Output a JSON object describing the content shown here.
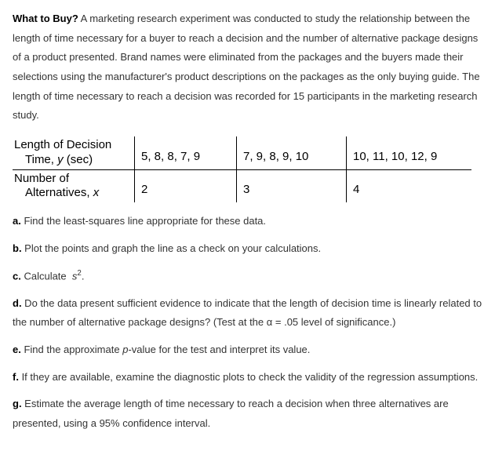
{
  "intro": {
    "lead": "What to Buy?",
    "body": " A marketing research experiment was conducted to study the relationship between the length of time necessary for a buyer to reach a decision and the number of alternative package designs of a product presented. Brand names were eliminated from the packages and the buyers made their selections using the manufacturer's product descriptions on the packages as the only buying guide. The length of time necessary to reach a decision was recorded for 15 participants in the marketing research study."
  },
  "table": {
    "row1": {
      "label_line1": "Length of Decision",
      "label_line2_pre": "Time, ",
      "label_var": "y",
      "label_line2_post": " (sec)",
      "c1": "5, 8, 8, 7, 9",
      "c2": "7, 9, 8, 9, 10",
      "c3": "10, 11, 10, 12, 9"
    },
    "row2": {
      "label_line1": "Number of",
      "label_line2_pre": "Alternatives, ",
      "label_var": "x",
      "c1": "2",
      "c2": "3",
      "c3": "4"
    }
  },
  "questions": {
    "a": {
      "label": "a.",
      "text": " Find the least-squares line appropriate for these data."
    },
    "b": {
      "label": "b.",
      "text": " Plot the points and graph the line as a check on your calculations."
    },
    "c": {
      "label": "c.",
      "text_pre": " Calculate ",
      "var": "s",
      "exp": "2",
      "text_post": "."
    },
    "d": {
      "label": "d.",
      "text": " Do the data present sufficient evidence to indicate that the length of decision time is linearly related to the number of alternative package designs? (Test at the α = .05 level of significance.)"
    },
    "e": {
      "label": "e.",
      "text_pre": " Find the approximate ",
      "pval": "p",
      "text_post": "-value for the test and interpret its value."
    },
    "f": {
      "label": "f.",
      "text": " If they are available, examine the diagnostic plots to check the validity of the regression assumptions."
    },
    "g": {
      "label": "g.",
      "text": " Estimate the average length of time necessary to reach a decision when three alternatives are presented, using a 95% confidence interval."
    }
  }
}
